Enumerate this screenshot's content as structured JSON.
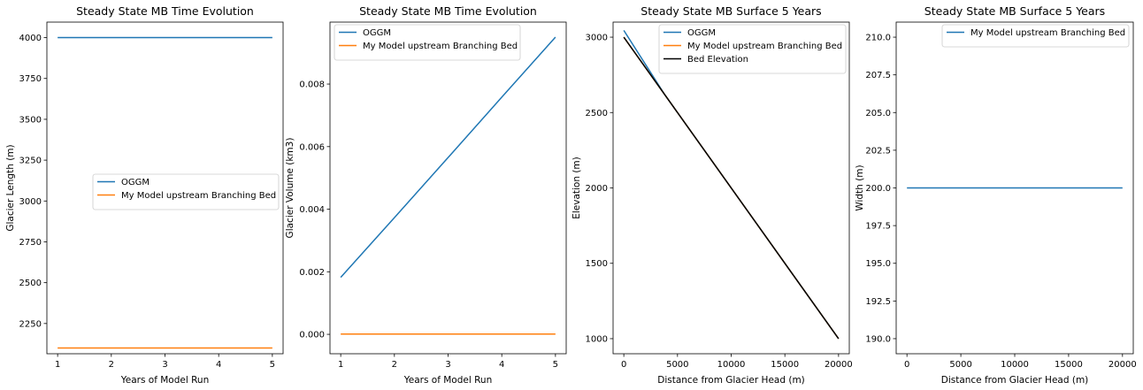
{
  "colors": {
    "blue": "#1f77b4",
    "orange": "#ff7f0e",
    "black": "#000000"
  },
  "chart_data": [
    {
      "type": "line",
      "title": "Steady State MB Time Evolution",
      "xlabel": "Years of Model Run",
      "ylabel": "Glacier Length (m)",
      "xlim": [
        0.8,
        5.2
      ],
      "ylim": [
        2065,
        4095
      ],
      "xticks": [
        1,
        2,
        3,
        4,
        5
      ],
      "yticks": [
        2250,
        2500,
        2750,
        3000,
        3250,
        3500,
        3750,
        4000
      ],
      "ytick_labels": [
        "2250",
        "2500",
        "2750",
        "3000",
        "3250",
        "3500",
        "3750",
        "4000"
      ],
      "legend_position": "center-right",
      "series": [
        {
          "name": "OGGM",
          "color": "#1f77b4",
          "x": [
            1,
            2,
            3,
            4,
            5
          ],
          "y": [
            4000,
            4000,
            4000,
            4000,
            4000
          ]
        },
        {
          "name": "My Model upstream Branching Bed",
          "color": "#ff7f0e",
          "x": [
            1,
            2,
            3,
            4,
            5
          ],
          "y": [
            2100,
            2100,
            2100,
            2100,
            2100
          ]
        }
      ]
    },
    {
      "type": "line",
      "title": "Steady State MB Time Evolution",
      "xlabel": "Years of Model Run",
      "ylabel": "Glacier Volume (km3)",
      "xlim": [
        0.8,
        5.2
      ],
      "ylim": [
        -0.00062,
        0.00998
      ],
      "xticks": [
        1,
        2,
        3,
        4,
        5
      ],
      "yticks": [
        0,
        0.002,
        0.004,
        0.006,
        0.008
      ],
      "ytick_labels": [
        "0.000",
        "0.002",
        "0.004",
        "0.006",
        "0.008"
      ],
      "legend_position": "top-left",
      "series": [
        {
          "name": "OGGM",
          "color": "#1f77b4",
          "x": [
            1,
            2,
            3,
            4,
            5
          ],
          "y": [
            0.00182,
            0.00373,
            0.00565,
            0.00758,
            0.0095
          ]
        },
        {
          "name": "My Model upstream Branching Bed",
          "color": "#ff7f0e",
          "x": [
            1,
            2,
            3,
            4,
            5
          ],
          "y": [
            1e-05,
            1e-05,
            1e-05,
            1e-05,
            1e-05
          ]
        }
      ]
    },
    {
      "type": "line",
      "title": "Steady State MB Surface 5 Years",
      "xlabel": "Distance from Glacier Head (m)",
      "ylabel": "Elevation (m)",
      "xlim": [
        -1000,
        21000
      ],
      "ylim": [
        900,
        3100
      ],
      "xticks": [
        0,
        5000,
        10000,
        15000,
        20000
      ],
      "yticks": [
        1000,
        1500,
        2000,
        2500,
        3000
      ],
      "ytick_labels": [
        "1000",
        "1500",
        "2000",
        "2500",
        "3000"
      ],
      "legend_position": "top-right",
      "series": [
        {
          "name": "OGGM",
          "color": "#1f77b4",
          "x": [
            0,
            3800,
            20000
          ],
          "y": [
            3045,
            2620,
            1000
          ]
        },
        {
          "name": "My Model upstream Branching Bed",
          "color": "#ff7f0e",
          "x": [
            0,
            20000
          ],
          "y": [
            3000,
            1000
          ]
        },
        {
          "name": "Bed Elevation",
          "color": "#000000",
          "x": [
            0,
            20000
          ],
          "y": [
            3000,
            1000
          ]
        }
      ]
    },
    {
      "type": "line",
      "title": "Steady State MB Surface 5 Years",
      "xlabel": "Distance from Glacier Head (m)",
      "ylabel": "Width (m)",
      "xlim": [
        -1000,
        21000
      ],
      "ylim": [
        189,
        211
      ],
      "xticks": [
        0,
        5000,
        10000,
        15000,
        20000
      ],
      "yticks": [
        190,
        192.5,
        195,
        197.5,
        200,
        202.5,
        205,
        207.5,
        210
      ],
      "ytick_labels": [
        "190.0",
        "192.5",
        "195.0",
        "197.5",
        "200.0",
        "202.5",
        "205.0",
        "207.5",
        "210.0"
      ],
      "legend_position": "top-right",
      "series": [
        {
          "name": "My Model upstream Branching Bed",
          "color": "#1f77b4",
          "x": [
            0,
            20000
          ],
          "y": [
            200,
            200
          ]
        }
      ]
    }
  ]
}
